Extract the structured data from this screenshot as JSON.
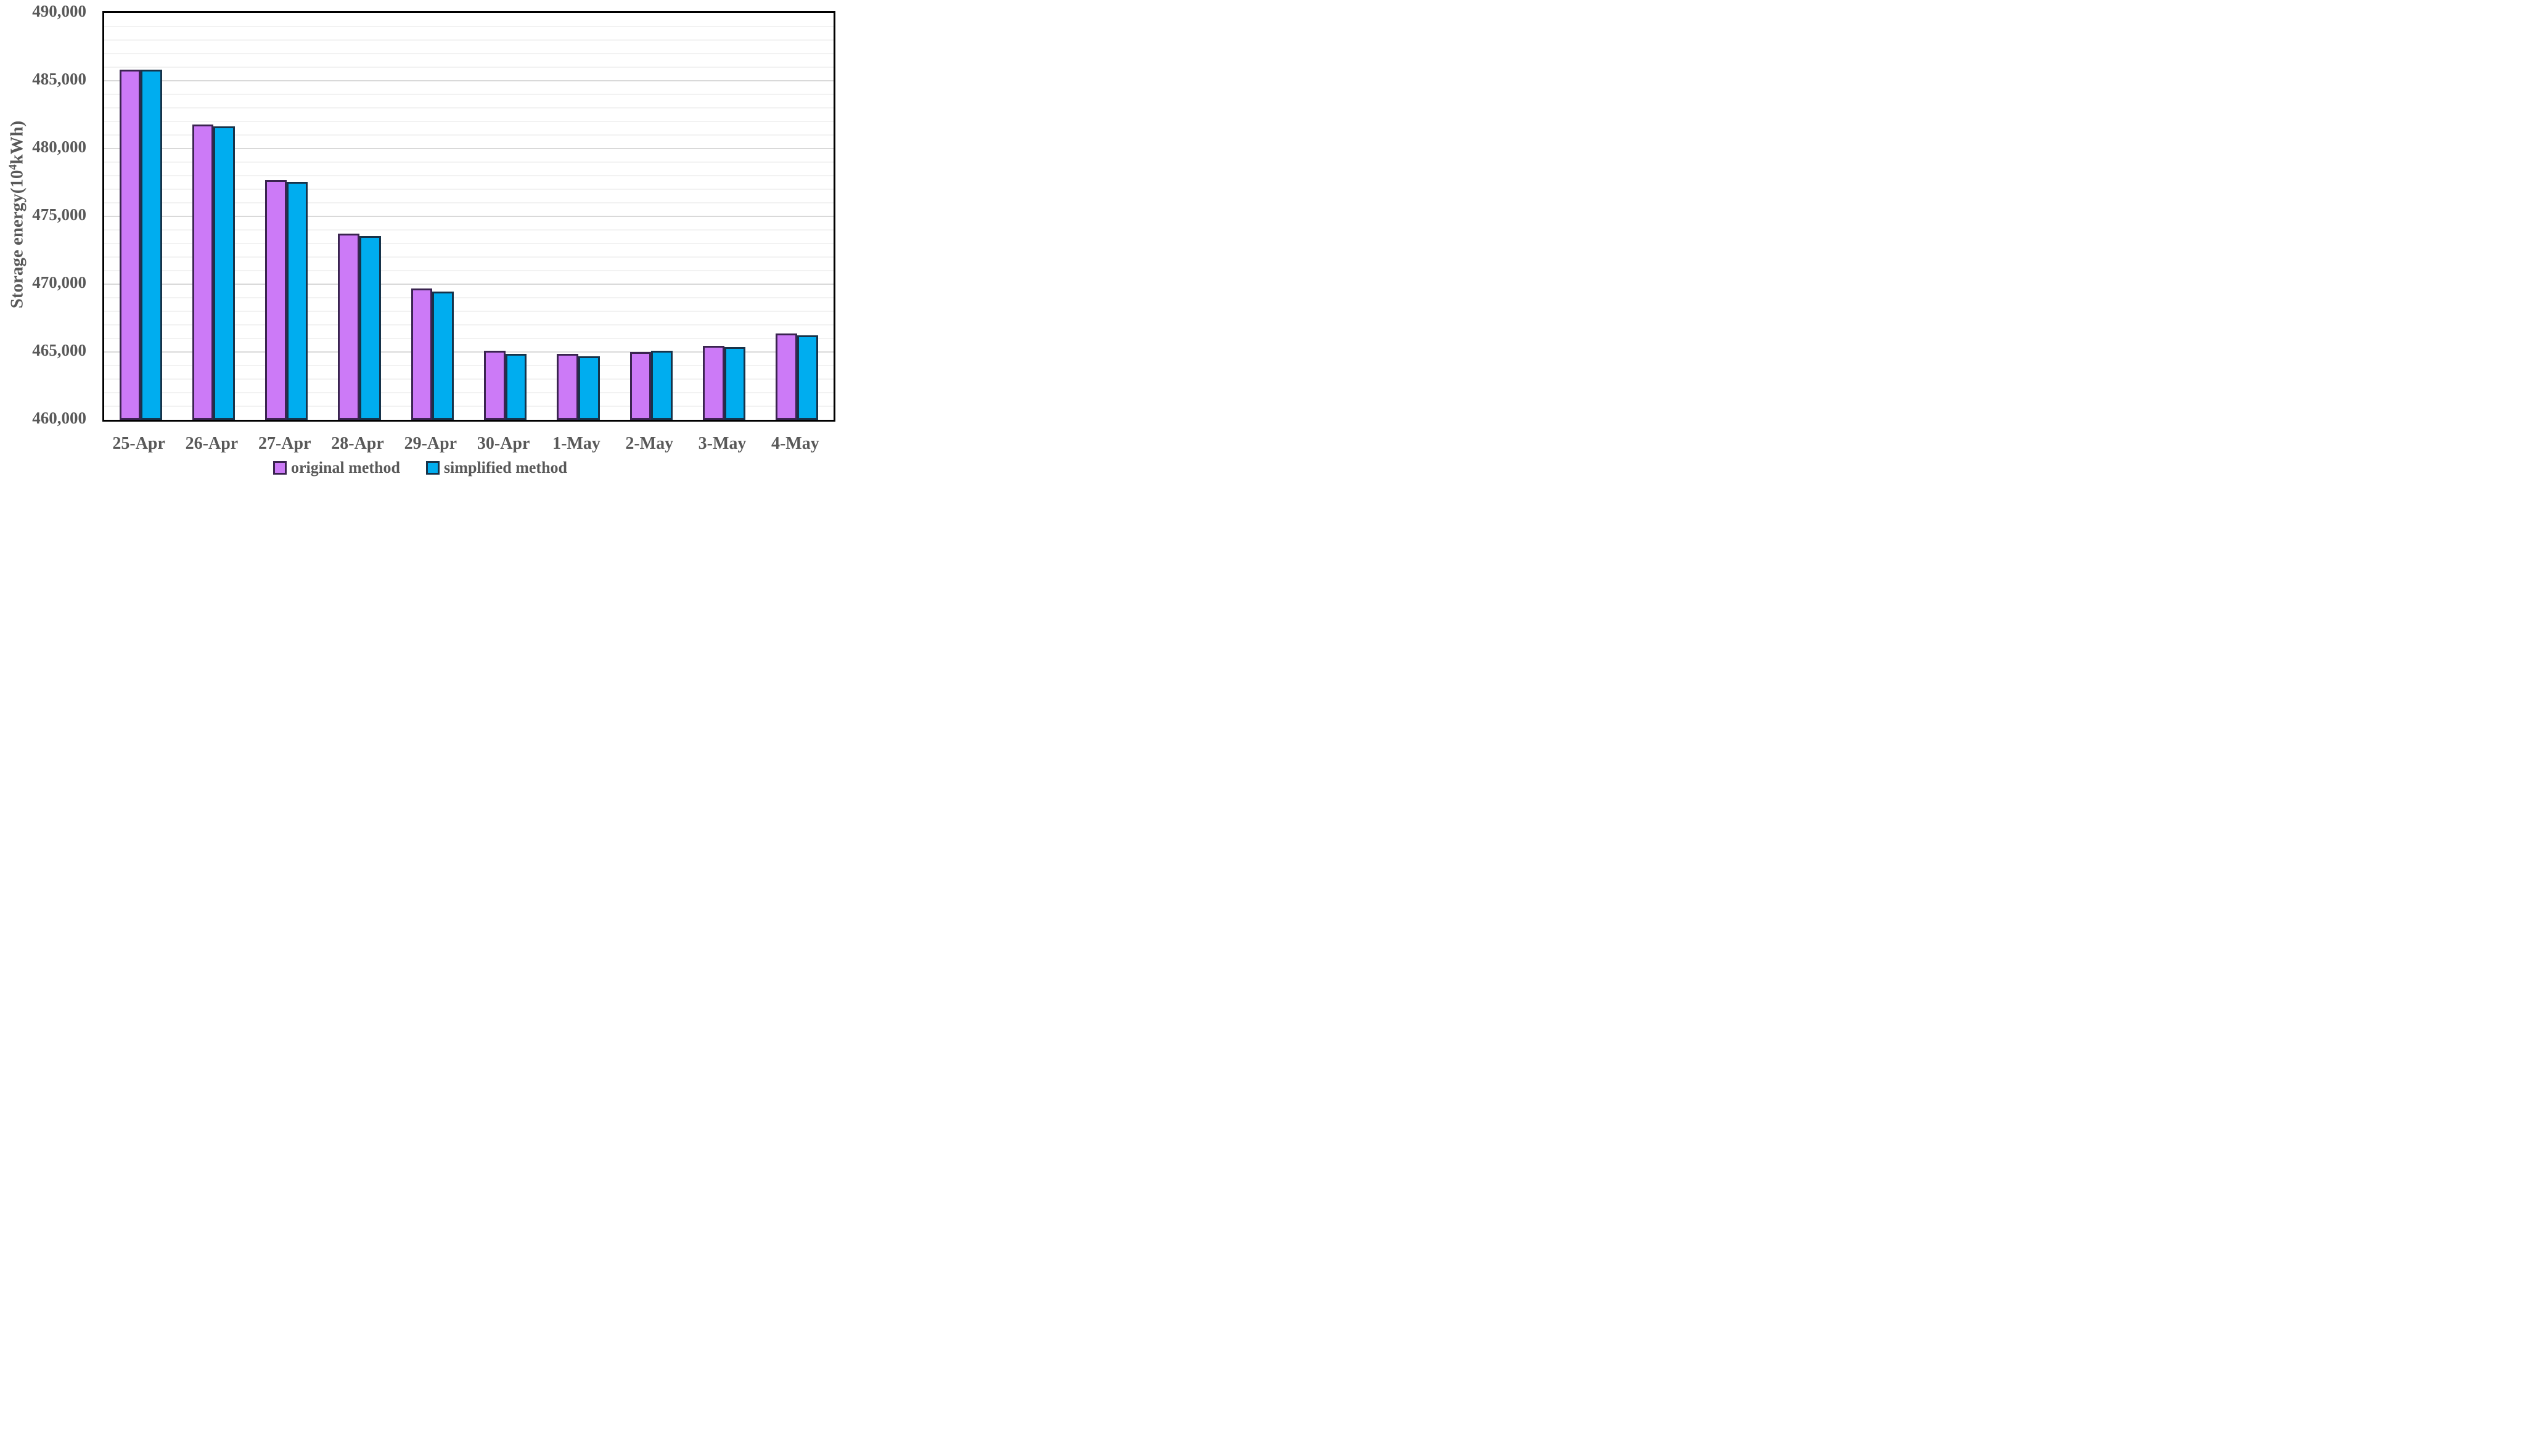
{
  "figure": {
    "background": "#ffffff",
    "axis_text_color": "#595959",
    "plot_border_color": "#000000",
    "major_grid_color": "#D9D9D9",
    "minor_grid_color": "#F2F2F2"
  },
  "chart_data": {
    "type": "bar",
    "title": "",
    "xlabel": "",
    "ylabel": "Storage energy(10⁴kWh)",
    "ylabel_parts": {
      "prefix": "Storage energy(10",
      "sup": "4",
      "suffix": "kWh)"
    },
    "categories": [
      "25-Apr",
      "26-Apr",
      "27-Apr",
      "28-Apr",
      "29-Apr",
      "30-Apr",
      "1-May",
      "2-May",
      "3-May",
      "4-May"
    ],
    "series": [
      {
        "name": "original method",
        "color": "#CC7AF7",
        "border_color": "#3A2450",
        "values": [
          485700,
          481650,
          477550,
          473600,
          469550,
          464950,
          464750,
          464850,
          465300,
          466250
        ]
      },
      {
        "name": "simplified method",
        "color": "#00ADEF",
        "border_color": "#17334A",
        "values": [
          485700,
          481500,
          477400,
          473400,
          469300,
          464750,
          464550,
          464950,
          465250,
          466100
        ]
      }
    ],
    "ylim": [
      460000,
      490000
    ],
    "ytick_major": 5000,
    "ytick_minor": 1000,
    "ytick_labels": [
      "460,000",
      "465,000",
      "470,000",
      "475,000",
      "480,000",
      "485,000",
      "490,000"
    ],
    "grid": "horizontal, minor every 1000, major every 5000",
    "legend_position": "bottom-center"
  }
}
